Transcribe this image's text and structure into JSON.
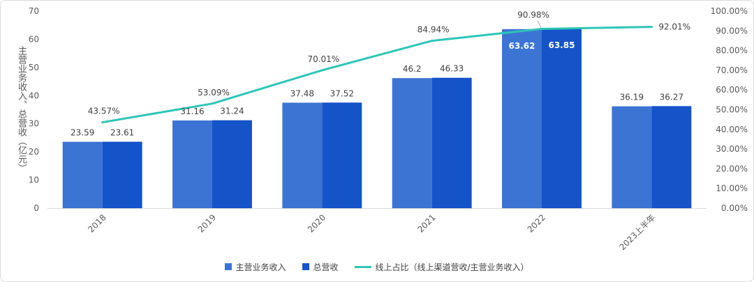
{
  "chart_data": {
    "type": "bar",
    "categories": [
      "2018",
      "2019",
      "2020",
      "2021",
      "2022",
      "2023上半年"
    ],
    "series": [
      {
        "name": "主营业务收入",
        "values": [
          23.59,
          31.16,
          37.48,
          46.2,
          63.62,
          36.19
        ],
        "labels": [
          "23.59",
          "31.16",
          "37.48",
          "46.2",
          "63.62",
          "36.19"
        ],
        "color": "#3C74D4"
      },
      {
        "name": "总营收",
        "values": [
          23.61,
          31.24,
          37.52,
          46.33,
          63.85,
          36.27
        ],
        "labels": [
          "23.61",
          "31.24",
          "37.52",
          "46.33",
          "63.85",
          "36.27"
        ],
        "color": "#1553C9"
      }
    ],
    "line_series": {
      "name": "线上占比（线上渠道营收/主营业务收入）",
      "values": [
        43.57,
        53.09,
        70.01,
        84.94,
        90.98,
        92.01
      ],
      "labels": [
        "43.57%",
        "53.09%",
        "70.01%",
        "84.94%",
        "90.98%",
        "92.01%"
      ],
      "color": "#2DC5B6"
    },
    "ylabel": "主营业务收入、总营收（亿元）",
    "ylim": [
      0,
      70
    ],
    "yticks": [
      "0",
      "10",
      "20",
      "30",
      "40",
      "50",
      "60",
      "70"
    ],
    "y2lim": [
      0,
      100
    ],
    "y2ticks": [
      "0.00%",
      "10.00%",
      "20.00%",
      "30.00%",
      "40.00%",
      "50.00%",
      "60.00%",
      "70.00%",
      "80.00%",
      "90.00%",
      "100.00%"
    ],
    "legend": "bottom",
    "grid": false
  }
}
